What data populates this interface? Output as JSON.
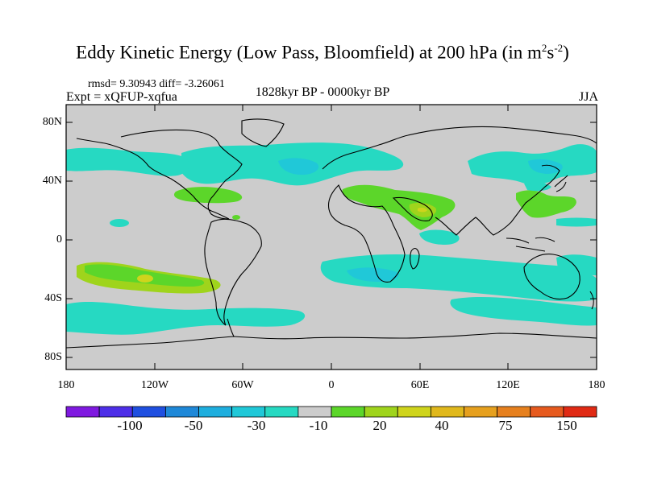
{
  "title": {
    "main": "Eddy Kinetic Energy (Low Pass, Bloomfield) at 200 hPa (in m",
    "sup1": "2",
    "mid": "s",
    "sup2": "-2",
    "close": ")"
  },
  "stats": "rmsd= 9.30943 diff= -3.26061",
  "experiment": "Expt = xQFUP-xqfua",
  "period": "1828kyr BP - 0000kyr BP",
  "season": "JJA",
  "lat_labels": [
    "80N",
    "40N",
    "0",
    "40S",
    "80S"
  ],
  "lon_labels": [
    "180",
    "120W",
    "60W",
    "0",
    "60E",
    "120E",
    "180"
  ],
  "map_data": {
    "type": "filled-contour-map",
    "projection": "cylindrical-equidistant",
    "lon_range": [
      -180,
      180
    ],
    "lat_range": [
      -90,
      90
    ],
    "background_level": "-10 to 10 (grey)",
    "regions": [
      {
        "name": "north-atlantic-negative",
        "level": "-30 to -10",
        "color": "#26d9c2"
      },
      {
        "name": "north-pacific-negative",
        "level": "-30 to -10",
        "color": "#26d9c2"
      },
      {
        "name": "southern-ocean-negative",
        "level": "-30 to -10",
        "color": "#26d9c2"
      },
      {
        "name": "mid-atlantic-positive",
        "level": "10 to 20",
        "color": "#5cd62a"
      },
      {
        "name": "arabia-positive",
        "level": "20 to 40",
        "color": "#9fd41c"
      },
      {
        "name": "east-asia-positive",
        "level": "10 to 20",
        "color": "#5cd62a"
      },
      {
        "name": "south-pacific-positive",
        "level": "20 to 40",
        "color": "#9fd41c"
      }
    ]
  },
  "colorbar": {
    "labels": [
      "-100",
      "-50",
      "-30",
      "-10",
      "20",
      "40",
      "75",
      "150"
    ],
    "colors": [
      "#7f19e0",
      "#4d2ee8",
      "#1f4fe0",
      "#1e88d8",
      "#1eaede",
      "#20c8d8",
      "#26d9c2",
      "#cccccc",
      "#5cd62a",
      "#9fd41c",
      "#cfd41c",
      "#e0b81c",
      "#e6a01e",
      "#e6801e",
      "#e65a1e",
      "#e02a14"
    ]
  }
}
